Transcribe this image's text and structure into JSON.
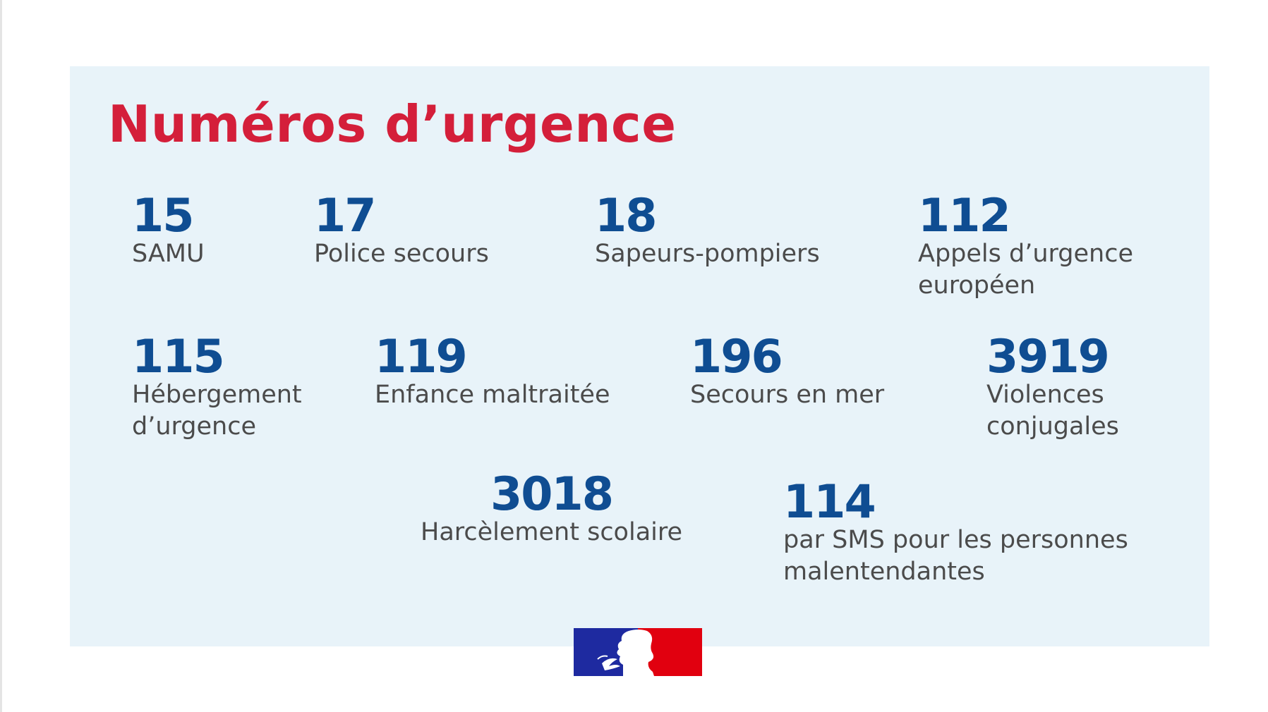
{
  "title": "Numéros d’urgence",
  "colors": {
    "title": "#d41f3a",
    "number": "#0f4d92",
    "label": "#4b4b4b",
    "panel_background": "#e8f3f9",
    "flag_blue": "#1e2aa0",
    "flag_red": "#e1000f"
  },
  "numbers": [
    {
      "number": "15",
      "label_lines": [
        "SAMU"
      ]
    },
    {
      "number": "17",
      "label_lines": [
        "Police secours"
      ]
    },
    {
      "number": "18",
      "label_lines": [
        "Sapeurs-pompiers"
      ]
    },
    {
      "number": "112",
      "label_lines": [
        "Appels d’urgence",
        "européen"
      ]
    },
    {
      "number": "115",
      "label_lines": [
        "Hébergement",
        "d’urgence"
      ]
    },
    {
      "number": "119",
      "label_lines": [
        "Enfance maltraitée"
      ]
    },
    {
      "number": "196",
      "label_lines": [
        "Secours en mer"
      ]
    },
    {
      "number": "3919",
      "label_lines": [
        "Violences",
        "conjugales"
      ]
    },
    {
      "number": "3018",
      "label_lines": [
        "Harcèlement scolaire"
      ]
    },
    {
      "number": "114",
      "label_lines": [
        "par SMS pour les personnes",
        "malentendantes"
      ]
    }
  ],
  "logo": {
    "name": "marianne-logo-icon"
  }
}
